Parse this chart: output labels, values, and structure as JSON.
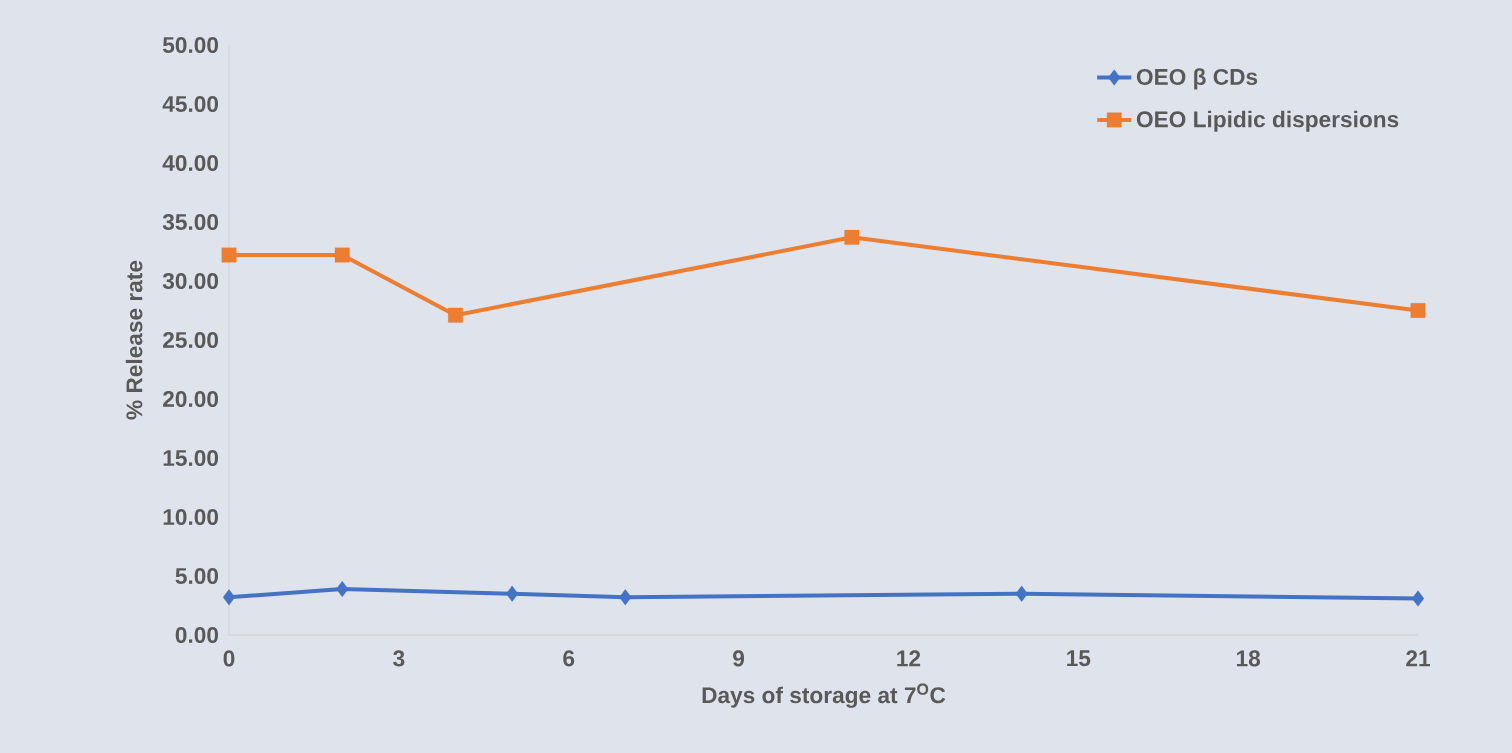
{
  "chart_data": {
    "type": "line",
    "xlabel": "Days of storage at 7$^{O}$C",
    "ylabel": "% Release rate",
    "xlim": [
      0,
      21
    ],
    "ylim": [
      0,
      50
    ],
    "xticks": [
      0,
      3,
      6,
      9,
      12,
      15,
      18,
      21
    ],
    "yticks": [
      {
        "value": 0,
        "label": "0.00"
      },
      {
        "value": 5,
        "label": "5.00"
      },
      {
        "value": 10,
        "label": "10.00"
      },
      {
        "value": 15,
        "label": "15.00"
      },
      {
        "value": 20,
        "label": "20.00"
      },
      {
        "value": 25,
        "label": "25.00"
      },
      {
        "value": 30,
        "label": "30.00"
      },
      {
        "value": 35,
        "label": "35.00"
      },
      {
        "value": 40,
        "label": "40.00"
      },
      {
        "value": 45,
        "label": "45.00"
      },
      {
        "value": 50,
        "label": "50.00"
      }
    ],
    "grid": false,
    "legend": "top right",
    "series": [
      {
        "name": "OEO β CDs",
        "color": "#4472c4",
        "marker": "diamond",
        "x": [
          0,
          2,
          5,
          7,
          14,
          21
        ],
        "values": [
          3.2,
          3.9,
          3.5,
          3.2,
          3.5,
          3.1
        ]
      },
      {
        "name": "OEO Lipidic dispersions",
        "color": "#ed7d31",
        "marker": "square",
        "x": [
          0,
          2,
          4,
          11,
          21
        ],
        "values": [
          32.2,
          32.2,
          27.1,
          33.7,
          27.5
        ]
      }
    ]
  }
}
